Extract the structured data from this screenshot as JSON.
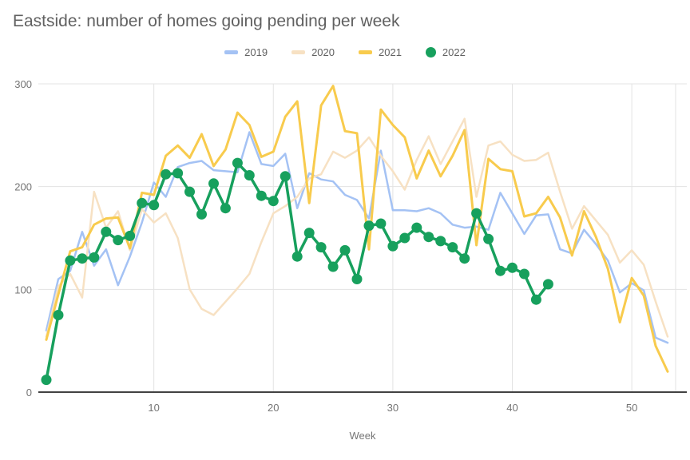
{
  "title": "Eastside: number of homes going pending per week",
  "colors": {
    "title_text": "#616161",
    "tick_text": "#757575",
    "gridline": "#e3e3e3",
    "axis_line": "#424242",
    "series_2019": "#a4c2f4",
    "series_2020": "#f7e1c3",
    "series_2021": "#f8cb4d",
    "series_2022": "#17a05d"
  },
  "chart_data": {
    "type": "line",
    "title": "Eastside: number of homes going pending per week",
    "xlabel": "Week",
    "ylabel": "",
    "x_ticks": [
      10,
      20,
      30,
      40,
      50
    ],
    "y_ticks": [
      0,
      100,
      200,
      300
    ],
    "xlim": [
      1,
      53.6
    ],
    "ylim": [
      0,
      300
    ],
    "grid": true,
    "legend_position": "top-center",
    "weeks_start": 1,
    "series": [
      {
        "name": "2019",
        "color": "#a4c2f4",
        "marker": "line",
        "values": [
          60,
          110,
          118,
          156,
          123,
          139,
          104,
          132,
          165,
          204,
          190,
          219,
          223,
          225,
          216,
          215,
          214,
          253,
          222,
          220,
          232,
          179,
          213,
          207,
          205,
          192,
          187,
          169,
          235,
          177,
          177,
          176,
          179,
          174,
          163,
          160,
          161,
          158,
          194,
          174,
          154,
          172,
          173,
          139,
          135,
          158,
          144,
          128,
          97,
          106,
          99,
          53,
          48
        ]
      },
      {
        "name": "2020",
        "color": "#f7e1c3",
        "marker": "line",
        "values": [
          54,
          103,
          115,
          92,
          195,
          160,
          176,
          138,
          178,
          165,
          174,
          150,
          100,
          81,
          75,
          88,
          101,
          115,
          146,
          174,
          181,
          190,
          208,
          212,
          234,
          228,
          235,
          248,
          230,
          215,
          197,
          226,
          249,
          222,
          244,
          266,
          190,
          240,
          244,
          231,
          225,
          226,
          233,
          195,
          159,
          181,
          167,
          153,
          126,
          138,
          124,
          88,
          54
        ]
      },
      {
        "name": "2021",
        "color": "#f8cb4d",
        "marker": "line",
        "values": [
          51,
          95,
          137,
          141,
          163,
          169,
          170,
          140,
          194,
          192,
          230,
          240,
          228,
          251,
          220,
          236,
          272,
          260,
          229,
          234,
          268,
          283,
          184,
          279,
          298,
          254,
          252,
          139,
          275,
          260,
          248,
          208,
          235,
          210,
          230,
          255,
          143,
          227,
          217,
          215,
          171,
          174,
          190,
          170,
          133,
          176,
          151,
          120,
          68,
          111,
          94,
          45,
          20
        ]
      },
      {
        "name": "2022",
        "color": "#17a05d",
        "marker": "circle",
        "values": [
          12,
          75,
          128,
          130,
          131,
          156,
          148,
          152,
          184,
          182,
          212,
          213,
          195,
          173,
          203,
          179,
          223,
          211,
          191,
          186,
          210,
          132,
          155,
          141,
          122,
          138,
          110,
          162,
          164,
          142,
          150,
          160,
          151,
          147,
          141,
          130,
          174,
          149,
          118,
          121,
          115,
          90,
          105
        ]
      }
    ]
  }
}
